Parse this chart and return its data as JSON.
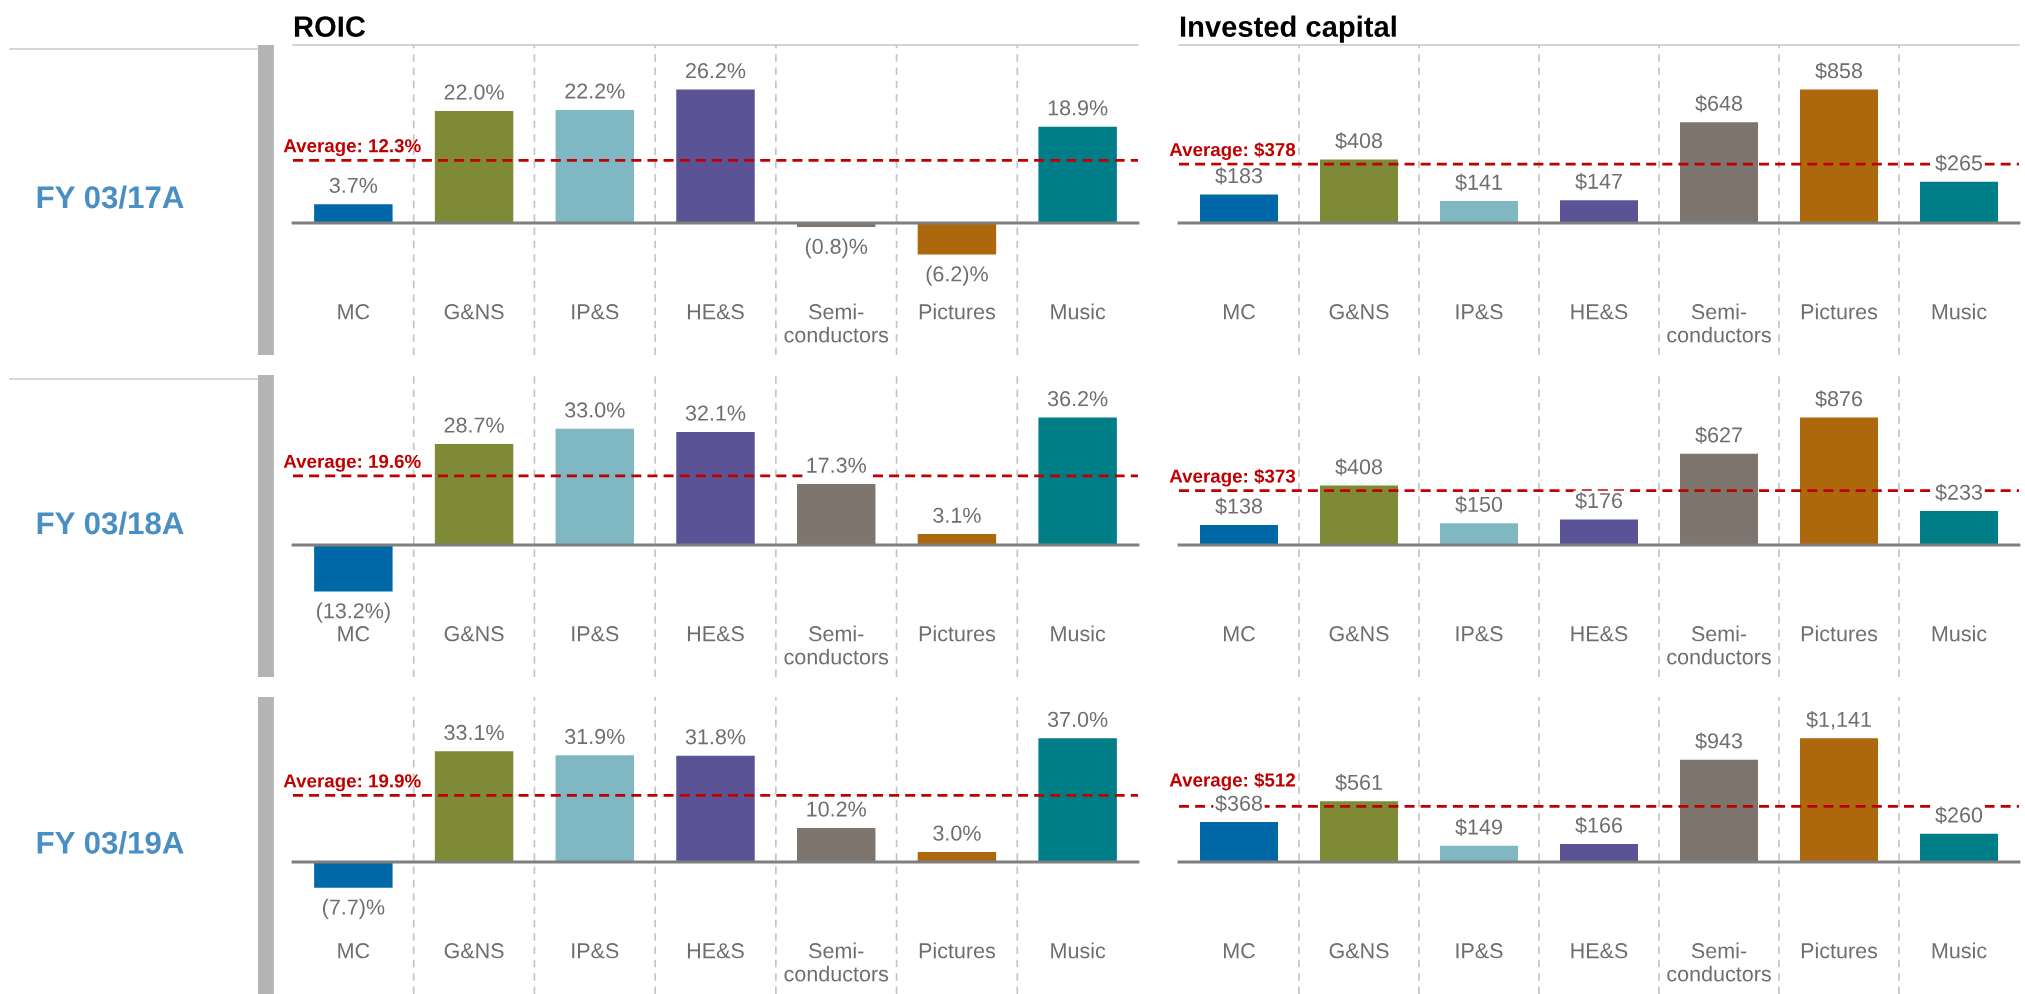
{
  "chart_data": [
    {
      "type": "bar",
      "title": "ROIC",
      "ylabel": "FY 03/17A",
      "categories": [
        "MC",
        "G&NS",
        "IP&S",
        "HE&S",
        "Semi-\nconductors",
        "Pictures",
        "Music"
      ],
      "values": [
        3.7,
        22.0,
        22.2,
        26.2,
        -0.8,
        -6.2,
        18.9
      ],
      "colors": [
        "#0068a6",
        "#7e8a36",
        "#7fb8c3",
        "#5a5396",
        "#7d756e",
        "#ad680e",
        "#007e87"
      ],
      "value_labels": [
        "3.7%",
        "22.0%",
        "22.2%",
        "26.2%",
        "(0.8)%",
        "(6.2)%",
        "18.9%"
      ],
      "ref_lines": [
        {
          "axis": "y",
          "value": 12.3,
          "label": "Average: 12.3%",
          "color": "#c00000",
          "line_style": "dashed"
        }
      ],
      "grid": "x",
      "tick_labels": "x"
    },
    {
      "type": "bar",
      "title": "Invested capital",
      "categories": [
        "MC",
        "G&NS",
        "IP&S",
        "HE&S",
        "Semi-\nconductors",
        "Pictures",
        "Music"
      ],
      "values": [
        183,
        408,
        141,
        147,
        648,
        858,
        265
      ],
      "colors": [
        "#0068a6",
        "#7e8a36",
        "#7fb8c3",
        "#5a5396",
        "#7d756e",
        "#ad680e",
        "#007e87"
      ],
      "value_labels": [
        "$183",
        "$408",
        "$141",
        "$147",
        "$648",
        "$858",
        "$265"
      ],
      "ref_lines": [
        {
          "axis": "y",
          "value": 378,
          "label": "Average: $378",
          "color": "#c00000",
          "line_style": "dashed"
        }
      ],
      "grid": "x",
      "tick_labels": "x"
    },
    {
      "type": "bar",
      "ylabel": "FY 03/18A",
      "categories": [
        "MC",
        "G&NS",
        "IP&S",
        "HE&S",
        "Semi-\nconductors",
        "Pictures",
        "Music"
      ],
      "values": [
        -13.2,
        28.7,
        33.0,
        32.1,
        17.3,
        3.1,
        36.2
      ],
      "colors": [
        "#0068a6",
        "#7e8a36",
        "#7fb8c3",
        "#5a5396",
        "#7d756e",
        "#ad680e",
        "#007e87"
      ],
      "value_labels": [
        "(13.2%)",
        "28.7%",
        "33.0%",
        "32.1%",
        "17.3%",
        "3.1%",
        "36.2%"
      ],
      "ref_lines": [
        {
          "axis": "y",
          "value": 19.6,
          "label": "Average: 19.6%",
          "color": "#c00000",
          "line_style": "dashed"
        }
      ],
      "grid": "x",
      "tick_labels": "x"
    },
    {
      "type": "bar",
      "categories": [
        "MC",
        "G&NS",
        "IP&S",
        "HE&S",
        "Semi-\nconductors",
        "Pictures",
        "Music"
      ],
      "values": [
        138,
        408,
        150,
        176,
        627,
        876,
        233
      ],
      "colors": [
        "#0068a6",
        "#7e8a36",
        "#7fb8c3",
        "#5a5396",
        "#7d756e",
        "#ad680e",
        "#007e87"
      ],
      "value_labels": [
        "$138",
        "$408",
        "$150",
        "$176",
        "$627",
        "$876",
        "$233"
      ],
      "ref_lines": [
        {
          "axis": "y",
          "value": 373,
          "label": "Average: $373",
          "color": "#c00000",
          "line_style": "dashed"
        }
      ],
      "grid": "x",
      "tick_labels": "x"
    },
    {
      "type": "bar",
      "ylabel": "FY 03/19A",
      "categories": [
        "MC",
        "G&NS",
        "IP&S",
        "HE&S",
        "Semi-\nconductors",
        "Pictures",
        "Music"
      ],
      "values": [
        -7.7,
        33.1,
        31.9,
        31.8,
        10.2,
        3.0,
        37.0
      ],
      "colors": [
        "#0068a6",
        "#7e8a36",
        "#7fb8c3",
        "#5a5396",
        "#7d756e",
        "#ad680e",
        "#007e87"
      ],
      "value_labels": [
        "(7.7)%",
        "33.1%",
        "31.9%",
        "31.8%",
        "10.2%",
        "3.0%",
        "37.0%"
      ],
      "ref_lines": [
        {
          "axis": "y",
          "value": 19.9,
          "label": "Average: 19.9%",
          "color": "#c00000",
          "line_style": "dashed"
        }
      ],
      "grid": "x",
      "tick_labels": "x"
    },
    {
      "type": "bar",
      "categories": [
        "MC",
        "G&NS",
        "IP&S",
        "HE&S",
        "Semi-\nconductors",
        "Pictures",
        "Music"
      ],
      "values": [
        368,
        561,
        149,
        166,
        943,
        1141,
        260
      ],
      "colors": [
        "#0068a6",
        "#7e8a36",
        "#7fb8c3",
        "#5a5396",
        "#7d756e",
        "#ad680e",
        "#007e87"
      ],
      "value_labels": [
        "$368",
        "$561",
        "$149",
        "$166",
        "$943",
        "$1,141",
        "$260"
      ],
      "ref_lines": [
        {
          "axis": "y",
          "value": 512,
          "label": "Average: $512",
          "color": "#c00000",
          "line_style": "dashed"
        }
      ],
      "grid": "x",
      "tick_labels": "x"
    }
  ]
}
